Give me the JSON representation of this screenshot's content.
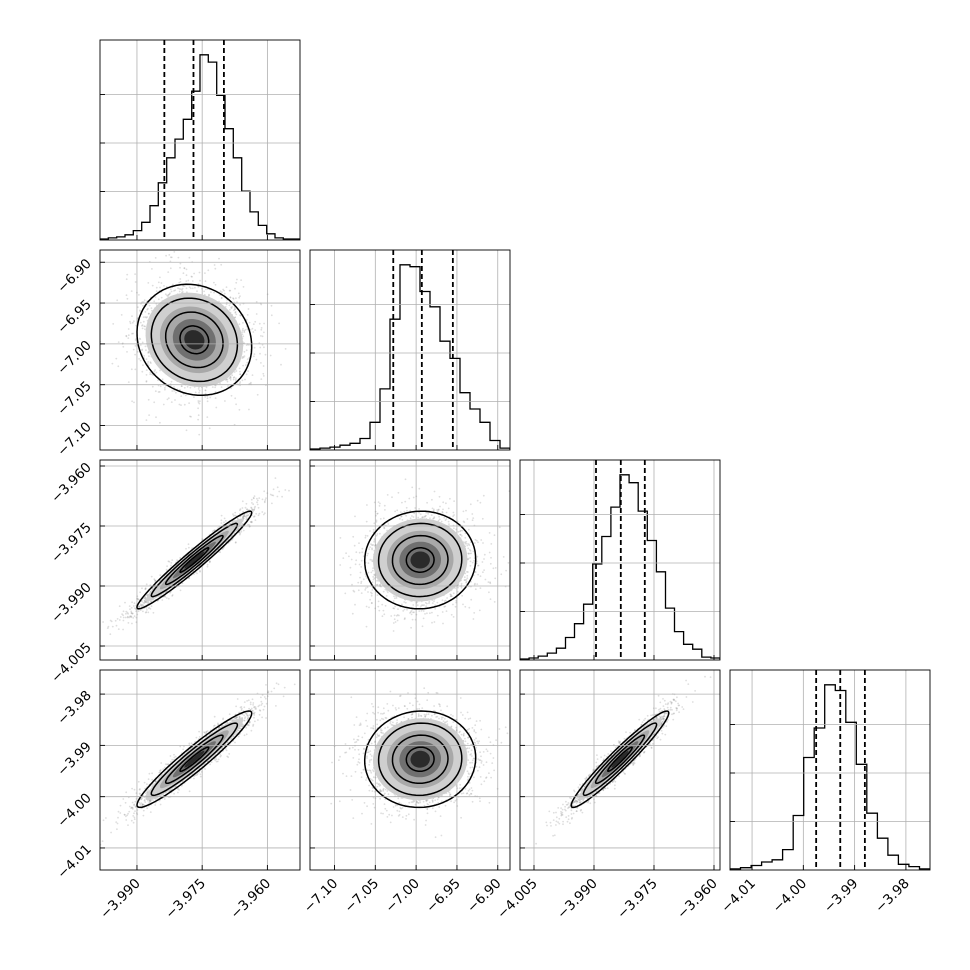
{
  "chart_data": {
    "type": "corner",
    "grid": true,
    "dimensions": [
      {
        "id": "p0",
        "ticks": [
          -3.99,
          -3.975,
          -3.96
        ],
        "tick_labels": [
          "−3.990",
          "−3.975",
          "−3.960"
        ],
        "range": [
          -3.9985,
          -3.9525
        ],
        "center": -3.9768,
        "sd": 0.0066,
        "quantiles": [
          -3.9837,
          -3.977,
          -3.97
        ],
        "hist_counts": [
          1,
          2,
          3,
          5,
          9,
          17,
          33,
          55,
          79,
          97,
          116,
          143,
          178,
          171,
          139,
          107,
          79,
          47,
          27,
          14,
          6,
          2,
          1,
          1
        ]
      },
      {
        "id": "p1",
        "ticks": [
          -7.1,
          -7.05,
          -7.0,
          -6.95,
          -6.9
        ],
        "tick_labels": [
          "−7.10",
          "−7.05",
          "−7.00",
          "−6.95",
          "−6.90"
        ],
        "range": [
          -7.13,
          -6.885
        ],
        "center": -6.995,
        "sd": 0.034,
        "quantiles": [
          -7.028,
          -6.993,
          -6.955
        ],
        "hist_counts": [
          1,
          2,
          3,
          5,
          7,
          12,
          29,
          64,
          137,
          194,
          192,
          166,
          150,
          114,
          96,
          60,
          43,
          29,
          10,
          2
        ]
      },
      {
        "id": "p2",
        "ticks": [
          -4.005,
          -3.99,
          -3.975,
          -3.96
        ],
        "tick_labels": [
          "−4.005",
          "−3.990",
          "−3.975",
          "−3.960"
        ],
        "range": [
          -4.0085,
          -3.9585
        ],
        "center": -3.9835,
        "sd": 0.0061,
        "quantiles": [
          -3.9895,
          -3.9833,
          -3.9773
        ],
        "hist_counts": [
          1,
          2,
          4,
          7,
          12,
          23,
          37,
          57,
          98,
          126,
          156,
          189,
          181,
          152,
          122,
          90,
          53,
          29,
          16,
          11,
          3,
          2
        ]
      },
      {
        "id": "p3",
        "ticks": [
          -4.01,
          -4.0,
          -3.99,
          -3.98
        ],
        "tick_labels": [
          "−4.01",
          "−4.00",
          "−3.99",
          "−3.98"
        ],
        "range": [
          -4.0143,
          -3.9753
        ],
        "center": -3.9927,
        "sd": 0.0047,
        "quantiles": [
          -3.9975,
          -3.9928,
          -3.988
        ],
        "hist_counts": [
          1,
          2,
          4,
          7,
          9,
          18,
          48,
          99,
          125,
          163,
          158,
          130,
          93,
          50,
          28,
          13,
          5,
          3,
          1
        ]
      }
    ],
    "correlations": {
      "1-0": -0.12,
      "2-0": 0.97,
      "2-1": 0.02,
      "3-0": 0.95,
      "3-1": 0.03,
      "3-2": 0.96
    }
  }
}
